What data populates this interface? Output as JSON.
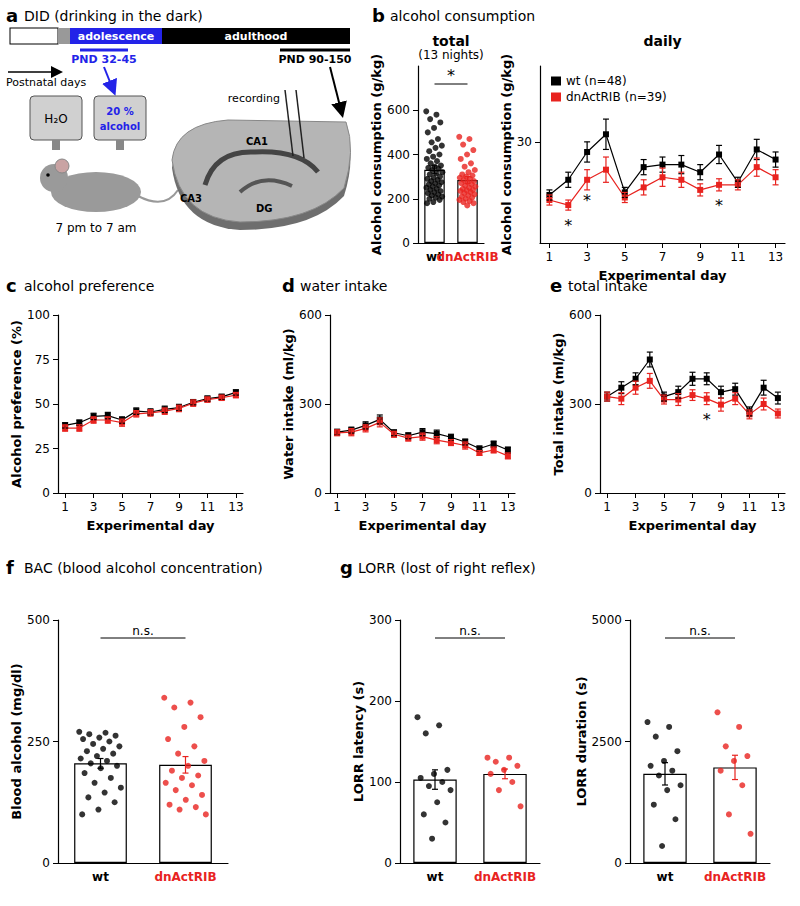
{
  "figure": {
    "panels": [
      {
        "letter": "a",
        "title": "DID (drinking in the dark)",
        "diagram": {
          "timeline": {
            "phases": [
              "adolescence",
              "adulthood"
            ],
            "axis_label": "Postnatal days",
            "windows": [
              "PND 32-45",
              "PND 90-150"
            ]
          },
          "drinking": {
            "bottles": [
              "H₂O",
              "20 % alcohol"
            ],
            "schedule": "7 pm to 7 am"
          },
          "slice": {
            "regions": [
              "CA1",
              "CA3",
              "DG"
            ],
            "electrode": "recording"
          }
        }
      },
      {
        "letter": "b",
        "title": "alcohol consumption"
      },
      {
        "letter": "c",
        "title": "alcohol preference"
      },
      {
        "letter": "d",
        "title": "water intake"
      },
      {
        "letter": "e",
        "title": "total intake"
      },
      {
        "letter": "f",
        "title": "BAC (blood alcohol concentration)"
      },
      {
        "letter": "g",
        "title": "LORR (lost of right reflex)"
      }
    ]
  },
  "chart_data": [
    {
      "panel": "b",
      "type": "bar",
      "title": "total",
      "subtitle": "(13 nights)",
      "ylabel": "Alcohol consumption (g/kg)",
      "categories": [
        "wt",
        "dnActRIB"
      ],
      "values": [
        331,
        285
      ],
      "errors": [
        18,
        15
      ],
      "colors": [
        "#000000",
        "#e8231f"
      ],
      "points": [
        [
          595,
          580,
          560,
          545,
          520,
          500,
          470,
          455,
          440,
          430,
          415,
          400,
          390,
          380,
          370,
          360,
          350,
          345,
          340,
          335,
          330,
          320,
          315,
          310,
          300,
          295,
          290,
          285,
          280,
          275,
          270,
          265,
          260,
          255,
          250,
          245,
          240,
          235,
          230,
          225,
          220,
          215,
          210,
          205,
          200,
          195,
          185,
          180
        ],
        [
          480,
          470,
          445,
          420,
          400,
          380,
          360,
          345,
          330,
          320,
          310,
          305,
          300,
          295,
          290,
          285,
          280,
          275,
          270,
          265,
          260,
          255,
          250,
          245,
          240,
          238,
          235,
          230,
          225,
          220,
          215,
          210,
          205,
          200,
          195,
          190,
          185,
          180,
          170
        ]
      ],
      "ylim": [
        0,
        800
      ],
      "yticks": [
        0,
        200,
        400,
        600
      ],
      "annotations": [
        {
          "text": "*",
          "between": [
            "wt",
            "dnActRIB"
          ]
        }
      ]
    },
    {
      "panel": "b",
      "type": "line",
      "title": "daily",
      "xlabel": "Experimental day",
      "ylabel": "Alcohol consumption (g/kg)",
      "x": [
        1,
        2,
        3,
        4,
        5,
        6,
        7,
        8,
        9,
        10,
        11,
        12,
        13
      ],
      "series": [
        {
          "name": "wt (n=48)",
          "color": "#000000",
          "values": [
            19.5,
            22.5,
            28,
            31.5,
            20,
            25,
            25.5,
            25.5,
            24,
            27.5,
            22,
            28.5,
            26.5
          ],
          "errors": [
            1,
            1.5,
            2,
            3,
            1,
            1.5,
            1.5,
            1.8,
            1.5,
            1.8,
            1,
            2,
            1.5
          ]
        },
        {
          "name": "dnActRIB (n=39)",
          "color": "#e8231f",
          "values": [
            18.5,
            17.5,
            22.5,
            24.5,
            19,
            21,
            23,
            22.5,
            20.5,
            21.5,
            21.5,
            25,
            23
          ],
          "errors": [
            1,
            1,
            2,
            2.5,
            1,
            1.5,
            1.8,
            1.5,
            1.2,
            1.2,
            1,
            1.8,
            1.5
          ]
        }
      ],
      "marker": "square",
      "xlim": [
        0.5,
        13.5
      ],
      "xticks": [
        1,
        3,
        5,
        7,
        9,
        11,
        13
      ],
      "ylim": [
        10,
        45
      ],
      "yticks": [
        30
      ],
      "legend": "top-left",
      "annotations": [
        {
          "text": "*",
          "x": 2
        },
        {
          "text": "*",
          "x": 3
        },
        {
          "text": "*",
          "x": 10
        }
      ]
    },
    {
      "panel": "c",
      "type": "line",
      "xlabel": "Experimental day",
      "ylabel": "Alcohol preference (%)",
      "x": [
        1,
        2,
        3,
        4,
        5,
        6,
        7,
        8,
        9,
        10,
        11,
        12,
        13
      ],
      "series": [
        {
          "color": "#000000",
          "values": [
            38,
            39.5,
            43,
            43.5,
            41,
            46,
            45.5,
            47,
            48,
            51,
            53,
            54,
            56.5
          ],
          "errors": [
            1.5,
            1.5,
            1.8,
            1.8,
            1.8,
            1.8,
            1.8,
            1.8,
            1.8,
            1.5,
            1.5,
            1.5,
            1.5
          ]
        },
        {
          "color": "#e8231f",
          "values": [
            36.5,
            36.5,
            41,
            41,
            39.5,
            44.5,
            45,
            46,
            47.5,
            50.5,
            52.5,
            53.5,
            55
          ],
          "errors": [
            1.8,
            1.8,
            1.8,
            1.8,
            2,
            1.8,
            1.8,
            1.8,
            1.8,
            1.8,
            1.5,
            1.5,
            1.5
          ]
        }
      ],
      "marker": "square",
      "xlim": [
        0.5,
        13.5
      ],
      "xticks": [
        1,
        3,
        5,
        7,
        9,
        11,
        13
      ],
      "ylim": [
        0,
        100
      ],
      "yticks": [
        0,
        25,
        50,
        75,
        100
      ]
    },
    {
      "panel": "d",
      "type": "line",
      "xlabel": "Experimental day",
      "ylabel": "Water intake (ml/kg)",
      "x": [
        1,
        2,
        3,
        4,
        5,
        6,
        7,
        8,
        9,
        10,
        11,
        12,
        13
      ],
      "series": [
        {
          "color": "#000000",
          "values": [
            205,
            212,
            228,
            248,
            203,
            193,
            205,
            200,
            188,
            172,
            150,
            165,
            145
          ],
          "errors": [
            10,
            10,
            12,
            15,
            10,
            10,
            12,
            12,
            10,
            10,
            8,
            10,
            10
          ]
        },
        {
          "color": "#e8231f",
          "values": [
            203,
            205,
            218,
            238,
            198,
            185,
            190,
            178,
            170,
            160,
            135,
            145,
            125
          ],
          "errors": [
            10,
            12,
            12,
            15,
            10,
            10,
            12,
            12,
            10,
            12,
            8,
            10,
            10
          ]
        }
      ],
      "marker": "square",
      "xlim": [
        0.5,
        13.5
      ],
      "xticks": [
        1,
        3,
        5,
        7,
        9,
        11,
        13
      ],
      "ylim": [
        0,
        600
      ],
      "yticks": [
        0,
        300,
        600
      ]
    },
    {
      "panel": "e",
      "type": "line",
      "xlabel": "Experimental day",
      "ylabel": "Total intake (ml/kg)",
      "x": [
        1,
        2,
        3,
        4,
        5,
        6,
        7,
        8,
        9,
        10,
        11,
        12,
        13
      ],
      "series": [
        {
          "color": "#000000",
          "values": [
            325,
            355,
            385,
            450,
            325,
            340,
            385,
            385,
            340,
            350,
            275,
            355,
            320
          ],
          "errors": [
            15,
            20,
            20,
            25,
            15,
            20,
            22,
            20,
            20,
            20,
            15,
            25,
            20
          ]
        },
        {
          "color": "#e8231f",
          "values": [
            325,
            318,
            355,
            378,
            315,
            315,
            330,
            318,
            298,
            318,
            265,
            300,
            268
          ],
          "errors": [
            15,
            20,
            22,
            25,
            15,
            20,
            18,
            20,
            22,
            20,
            15,
            20,
            15
          ]
        }
      ],
      "marker": "square",
      "xlim": [
        0.5,
        13.5
      ],
      "xticks": [
        1,
        3,
        5,
        7,
        9,
        11,
        13
      ],
      "ylim": [
        0,
        600
      ],
      "yticks": [
        0,
        300,
        600
      ],
      "annotations": [
        {
          "text": "*",
          "x": 8
        }
      ]
    },
    {
      "panel": "f",
      "type": "bar",
      "ylabel": "Blood alcohol (mg/dl)",
      "categories": [
        "wt",
        "dnActRIB"
      ],
      "values": [
        205,
        202
      ],
      "errors": [
        10,
        17
      ],
      "colors": [
        "#000000",
        "#e8231f"
      ],
      "points": [
        [
          270,
          268,
          265,
          262,
          258,
          255,
          250,
          245,
          240,
          235,
          230,
          225,
          220,
          215,
          210,
          205,
          200,
          195,
          185,
          175,
          165,
          155,
          145,
          135,
          125,
          110,
          100
        ],
        [
          340,
          330,
          320,
          300,
          280,
          255,
          240,
          225,
          210,
          200,
          190,
          180,
          175,
          165,
          160,
          150,
          140,
          130,
          120,
          115,
          110,
          100
        ]
      ],
      "ylim": [
        0,
        500
      ],
      "yticks": [
        0,
        250,
        500
      ],
      "annotations": [
        {
          "text": "n.s.",
          "between": [
            "wt",
            "dnActRIB"
          ]
        }
      ]
    },
    {
      "panel": "g",
      "type": "bar",
      "ylabel": "LORR latency (s)",
      "categories": [
        "wt",
        "dnActRIB"
      ],
      "values": [
        103,
        110
      ],
      "errors": [
        12,
        6
      ],
      "colors": [
        "#000000",
        "#e8231f"
      ],
      "points": [
        [
          180,
          170,
          160,
          115,
          110,
          105,
          100,
          95,
          90,
          75,
          60,
          50,
          30
        ],
        [
          130,
          130,
          125,
          120,
          115,
          110,
          100,
          90,
          70
        ]
      ],
      "ylim": [
        0,
        300
      ],
      "yticks": [
        0,
        100,
        200,
        300
      ],
      "annotations": [
        {
          "text": "n.s.",
          "between": [
            "wt",
            "dnActRIB"
          ]
        }
      ]
    },
    {
      "panel": "g",
      "type": "bar",
      "ylabel": "LORR duration (s)",
      "categories": [
        "wt",
        "dnActRIB"
      ],
      "values": [
        1835,
        1967
      ],
      "errors": [
        230,
        250
      ],
      "colors": [
        "#000000",
        "#e8231f"
      ],
      "points": [
        [
          2900,
          2800,
          2600,
          2300,
          2100,
          2000,
          1900,
          1800,
          1600,
          1500,
          1200,
          900,
          350
        ],
        [
          3100,
          2800,
          2400,
          2200,
          2100,
          1900,
          1600,
          1000,
          600
        ]
      ],
      "ylim": [
        0,
        5000
      ],
      "yticks": [
        0,
        2500,
        5000
      ],
      "annotations": [
        {
          "text": "n.s.",
          "between": [
            "wt",
            "dnActRIB"
          ]
        }
      ]
    }
  ]
}
